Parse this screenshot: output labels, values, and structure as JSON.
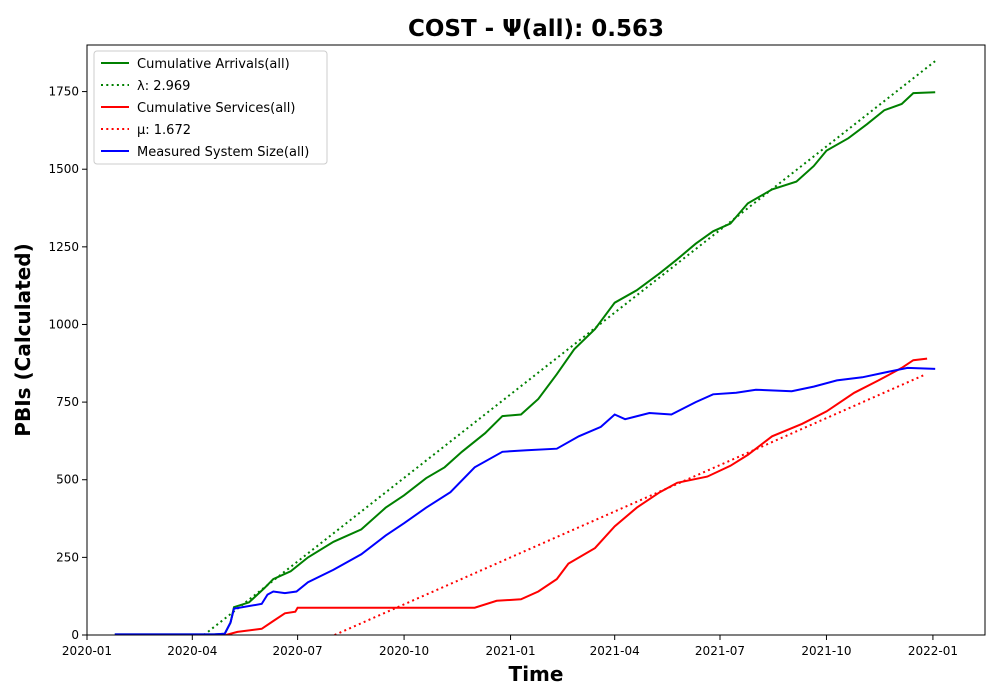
{
  "chart_data": {
    "type": "line",
    "title": "COST -  Ψ(all): 0.563",
    "xlabel": "Time",
    "ylabel": "PBIs (Calculated)",
    "xlim": [
      "2020-01-01",
      "2022-02-15"
    ],
    "ylim": [
      0,
      1900
    ],
    "x_ticks": [
      "2020-01-01",
      "2020-04-01",
      "2020-07-01",
      "2020-10-01",
      "2021-01-01",
      "2021-04-01",
      "2021-07-01",
      "2021-10-01",
      "2022-01-01"
    ],
    "x_tick_labels": [
      "2020-01",
      "2020-04",
      "2020-07",
      "2020-10",
      "2021-01",
      "2021-04",
      "2021-07",
      "2021-10",
      "2022-01"
    ],
    "y_ticks": [
      0,
      250,
      500,
      750,
      1000,
      1250,
      1500,
      1750
    ],
    "legend_position": "top-left",
    "grid": false,
    "series": [
      {
        "name": "Cumulative Arrivals(all)",
        "color": "#008000",
        "style": "solid",
        "points": [
          [
            "2020-01-25",
            2
          ],
          [
            "2020-04-20",
            2
          ],
          [
            "2020-04-29",
            4
          ],
          [
            "2020-05-04",
            40
          ],
          [
            "2020-05-07",
            90
          ],
          [
            "2020-05-20",
            105
          ],
          [
            "2020-06-02",
            150
          ],
          [
            "2020-06-10",
            180
          ],
          [
            "2020-06-25",
            205
          ],
          [
            "2020-07-10",
            250
          ],
          [
            "2020-08-01",
            300
          ],
          [
            "2020-08-25",
            340
          ],
          [
            "2020-09-15",
            410
          ],
          [
            "2020-10-01",
            450
          ],
          [
            "2020-10-20",
            505
          ],
          [
            "2020-11-05",
            540
          ],
          [
            "2020-11-20",
            590
          ],
          [
            "2020-12-10",
            650
          ],
          [
            "2020-12-25",
            705
          ],
          [
            "2021-01-10",
            710
          ],
          [
            "2021-01-25",
            760
          ],
          [
            "2021-02-10",
            840
          ],
          [
            "2021-02-25",
            920
          ],
          [
            "2021-03-15",
            985
          ],
          [
            "2021-04-01",
            1070
          ],
          [
            "2021-04-20",
            1110
          ],
          [
            "2021-05-10",
            1165
          ],
          [
            "2021-05-25",
            1210
          ],
          [
            "2021-06-10",
            1260
          ],
          [
            "2021-06-25",
            1300
          ],
          [
            "2021-07-10",
            1325
          ],
          [
            "2021-07-25",
            1390
          ],
          [
            "2021-08-15",
            1435
          ],
          [
            "2021-09-05",
            1460
          ],
          [
            "2021-09-20",
            1510
          ],
          [
            "2021-10-01",
            1560
          ],
          [
            "2021-10-20",
            1600
          ],
          [
            "2021-11-05",
            1645
          ],
          [
            "2021-11-20",
            1690
          ],
          [
            "2021-12-05",
            1710
          ],
          [
            "2021-12-15",
            1745
          ],
          [
            "2022-01-03",
            1748
          ]
        ]
      },
      {
        "name": "λ: 2.969",
        "color": "#008000",
        "style": "dotted",
        "points": [
          [
            "2020-04-11",
            0
          ],
          [
            "2022-01-03",
            1848
          ]
        ]
      },
      {
        "name": "Cumulative Services(all)",
        "color": "#ff0000",
        "style": "solid",
        "points": [
          [
            "2020-04-30",
            0
          ],
          [
            "2020-05-10",
            10
          ],
          [
            "2020-05-31",
            20
          ],
          [
            "2020-06-10",
            45
          ],
          [
            "2020-06-20",
            70
          ],
          [
            "2020-06-29",
            75
          ],
          [
            "2020-07-01",
            88
          ],
          [
            "2020-12-01",
            88
          ],
          [
            "2020-12-20",
            110
          ],
          [
            "2021-01-10",
            115
          ],
          [
            "2021-01-25",
            140
          ],
          [
            "2021-02-10",
            180
          ],
          [
            "2021-02-20",
            230
          ],
          [
            "2021-03-15",
            280
          ],
          [
            "2021-04-01",
            350
          ],
          [
            "2021-04-20",
            410
          ],
          [
            "2021-05-10",
            460
          ],
          [
            "2021-05-25",
            490
          ],
          [
            "2021-06-20",
            510
          ],
          [
            "2021-07-10",
            545
          ],
          [
            "2021-07-25",
            580
          ],
          [
            "2021-08-15",
            640
          ],
          [
            "2021-09-10",
            680
          ],
          [
            "2021-10-01",
            720
          ],
          [
            "2021-10-25",
            780
          ],
          [
            "2021-11-15",
            820
          ],
          [
            "2021-12-05",
            860
          ],
          [
            "2021-12-15",
            885
          ],
          [
            "2021-12-27",
            890
          ]
        ]
      },
      {
        "name": "μ: 1.672",
        "color": "#ff0000",
        "style": "dotted",
        "points": [
          [
            "2020-08-02",
            0
          ],
          [
            "2021-12-26",
            840
          ]
        ]
      },
      {
        "name": "Measured System Size(all)",
        "color": "#0000ff",
        "style": "solid",
        "points": [
          [
            "2020-01-25",
            2
          ],
          [
            "2020-04-20",
            2
          ],
          [
            "2020-04-29",
            4
          ],
          [
            "2020-05-04",
            40
          ],
          [
            "2020-05-07",
            85
          ],
          [
            "2020-05-31",
            100
          ],
          [
            "2020-06-05",
            130
          ],
          [
            "2020-06-10",
            140
          ],
          [
            "2020-06-20",
            135
          ],
          [
            "2020-06-30",
            140
          ],
          [
            "2020-07-10",
            170
          ],
          [
            "2020-08-01",
            210
          ],
          [
            "2020-08-25",
            260
          ],
          [
            "2020-09-15",
            320
          ],
          [
            "2020-10-01",
            360
          ],
          [
            "2020-10-20",
            410
          ],
          [
            "2020-11-10",
            460
          ],
          [
            "2020-12-01",
            540
          ],
          [
            "2020-12-25",
            590
          ],
          [
            "2021-01-15",
            595
          ],
          [
            "2021-02-10",
            600
          ],
          [
            "2021-03-01",
            640
          ],
          [
            "2021-03-20",
            670
          ],
          [
            "2021-04-01",
            710
          ],
          [
            "2021-04-10",
            695
          ],
          [
            "2021-05-01",
            715
          ],
          [
            "2021-05-20",
            710
          ],
          [
            "2021-06-10",
            750
          ],
          [
            "2021-06-25",
            775
          ],
          [
            "2021-07-15",
            780
          ],
          [
            "2021-08-01",
            790
          ],
          [
            "2021-09-01",
            785
          ],
          [
            "2021-09-20",
            800
          ],
          [
            "2021-10-10",
            820
          ],
          [
            "2021-11-01",
            830
          ],
          [
            "2021-11-20",
            845
          ],
          [
            "2021-12-10",
            860
          ],
          [
            "2022-01-03",
            857
          ]
        ]
      }
    ]
  }
}
